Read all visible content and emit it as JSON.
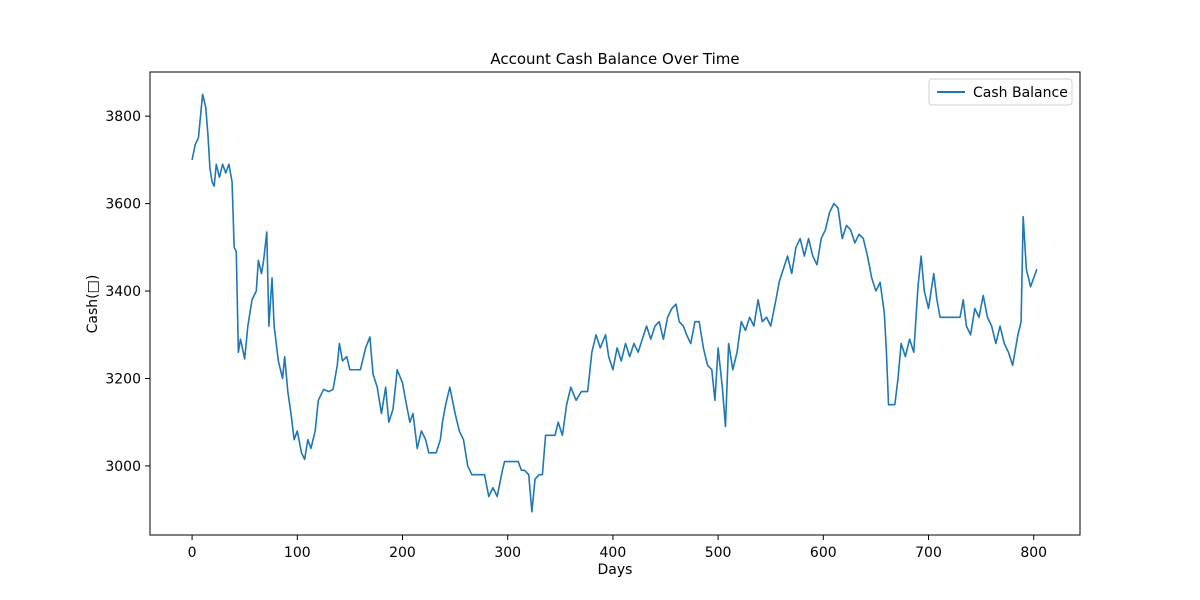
{
  "chart_data": {
    "type": "line",
    "title": "Account Cash Balance Over Time",
    "x_label": "Days",
    "y_label": "Cash(□)",
    "x": [
      0,
      3,
      6,
      8,
      10,
      13,
      15,
      17,
      19,
      21,
      23,
      26,
      29,
      32,
      35,
      38,
      40,
      42,
      44,
      46,
      50,
      53,
      57,
      61,
      63,
      66,
      68,
      71,
      73,
      76,
      78,
      82,
      86,
      88,
      91,
      94,
      97,
      100,
      104,
      107,
      110,
      113,
      117,
      120,
      125,
      130,
      134,
      138,
      140,
      143,
      147,
      150,
      160,
      165,
      169,
      172,
      176,
      180,
      184,
      187,
      191,
      195,
      200,
      203,
      207,
      210,
      214,
      218,
      222,
      225,
      232,
      236,
      238,
      241,
      245,
      250,
      254,
      258,
      262,
      266,
      278,
      282,
      286,
      290,
      295,
      297,
      300,
      310,
      313,
      316,
      320,
      323,
      326,
      330,
      333,
      336,
      345,
      348,
      352,
      356,
      360,
      365,
      370,
      376,
      380,
      384,
      388,
      393,
      396,
      400,
      404,
      408,
      412,
      416,
      420,
      424,
      428,
      432,
      436,
      440,
      444,
      448,
      452,
      456,
      460,
      463,
      467,
      470,
      474,
      478,
      482,
      486,
      490,
      494,
      497,
      500,
      504,
      507,
      510,
      514,
      518,
      522,
      526,
      530,
      534,
      538,
      542,
      546,
      550,
      555,
      558,
      562,
      566,
      570,
      574,
      578,
      582,
      586,
      590,
      594,
      598,
      602,
      606,
      610,
      614,
      618,
      622,
      626,
      630,
      634,
      638,
      642,
      646,
      650,
      654,
      658,
      660,
      662,
      668,
      671,
      674,
      678,
      682,
      686,
      690,
      693,
      696,
      700,
      705,
      708,
      711,
      720,
      730,
      733,
      736,
      740,
      744,
      748,
      752,
      756,
      760,
      764,
      768,
      772,
      776,
      780,
      785,
      788,
      790,
      793,
      797,
      800,
      803
    ],
    "series": [
      {
        "name": "Cash Balance",
        "color": "#1f77b4",
        "values": [
          3700,
          3735,
          3750,
          3800,
          3850,
          3820,
          3760,
          3680,
          3650,
          3640,
          3690,
          3660,
          3690,
          3670,
          3690,
          3650,
          3500,
          3490,
          3260,
          3290,
          3245,
          3320,
          3380,
          3400,
          3470,
          3440,
          3470,
          3535,
          3320,
          3430,
          3320,
          3240,
          3200,
          3250,
          3170,
          3120,
          3060,
          3080,
          3030,
          3015,
          3060,
          3040,
          3080,
          3150,
          3175,
          3170,
          3175,
          3230,
          3280,
          3240,
          3250,
          3220,
          3220,
          3270,
          3295,
          3210,
          3180,
          3120,
          3180,
          3100,
          3130,
          3220,
          3190,
          3150,
          3100,
          3120,
          3040,
          3080,
          3060,
          3030,
          3030,
          3060,
          3100,
          3140,
          3180,
          3120,
          3080,
          3060,
          3000,
          2980,
          2980,
          2930,
          2950,
          2930,
          2990,
          3010,
          3010,
          3010,
          2990,
          2990,
          2980,
          2895,
          2970,
          2980,
          2980,
          3070,
          3070,
          3100,
          3070,
          3140,
          3180,
          3150,
          3170,
          3170,
          3260,
          3300,
          3270,
          3300,
          3250,
          3220,
          3270,
          3240,
          3280,
          3250,
          3280,
          3260,
          3290,
          3320,
          3290,
          3320,
          3330,
          3290,
          3340,
          3360,
          3370,
          3330,
          3320,
          3300,
          3280,
          3330,
          3330,
          3270,
          3230,
          3220,
          3150,
          3270,
          3180,
          3090,
          3280,
          3220,
          3260,
          3330,
          3310,
          3340,
          3320,
          3380,
          3330,
          3340,
          3320,
          3380,
          3420,
          3450,
          3480,
          3440,
          3500,
          3520,
          3480,
          3520,
          3480,
          3460,
          3520,
          3540,
          3580,
          3600,
          3590,
          3520,
          3550,
          3540,
          3510,
          3530,
          3520,
          3480,
          3430,
          3400,
          3420,
          3350,
          3260,
          3140,
          3140,
          3200,
          3280,
          3250,
          3290,
          3260,
          3410,
          3480,
          3400,
          3360,
          3440,
          3380,
          3340,
          3340,
          3340,
          3380,
          3320,
          3300,
          3360,
          3340,
          3390,
          3340,
          3320,
          3280,
          3320,
          3280,
          3260,
          3230,
          3300,
          3330,
          3570,
          3450,
          3410,
          3430,
          3450
        ]
      }
    ],
    "xlim": [
      -40,
      844
    ],
    "ylim": [
      2842,
      3901
    ],
    "xticks": [
      0,
      100,
      200,
      300,
      400,
      500,
      600,
      700,
      800
    ],
    "yticks": [
      3000,
      3200,
      3400,
      3600,
      3800
    ],
    "legend": "upper right",
    "grid": false
  }
}
